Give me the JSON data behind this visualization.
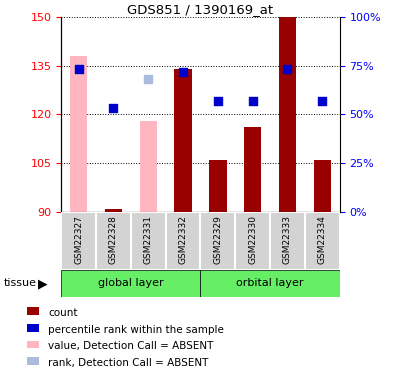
{
  "title": "GDS851 / 1390169_at",
  "samples": [
    "GSM22327",
    "GSM22328",
    "GSM22331",
    "GSM22332",
    "GSM22329",
    "GSM22330",
    "GSM22333",
    "GSM22334"
  ],
  "bar_values": [
    null,
    91,
    null,
    134,
    106,
    116,
    150,
    106
  ],
  "bar_absent_values": [
    138,
    null,
    118,
    null,
    null,
    null,
    null,
    null
  ],
  "dot_values": [
    134,
    122,
    null,
    133,
    124,
    124,
    134,
    124
  ],
  "dot_absent_values": [
    null,
    null,
    131,
    null,
    null,
    null,
    null,
    null
  ],
  "ylim": [
    90,
    150
  ],
  "yticks": [
    90,
    105,
    120,
    135,
    150
  ],
  "right_yticks": [
    0,
    25,
    50,
    75,
    100
  ],
  "right_ylim": [
    0,
    100
  ],
  "bar_color": "#990000",
  "bar_absent_color": "#ffb6c1",
  "dot_color": "#0000cc",
  "dot_absent_color": "#aabbdd",
  "group_bg_color": "#d3d3d3",
  "green_color": "#66ee66",
  "figsize": [
    3.95,
    3.75
  ],
  "dpi": 100,
  "legend_items": [
    {
      "color": "#990000",
      "label": "count"
    },
    {
      "color": "#0000cc",
      "label": "percentile rank within the sample"
    },
    {
      "color": "#ffb6c1",
      "label": "value, Detection Call = ABSENT"
    },
    {
      "color": "#aabbdd",
      "label": "rank, Detection Call = ABSENT"
    }
  ]
}
